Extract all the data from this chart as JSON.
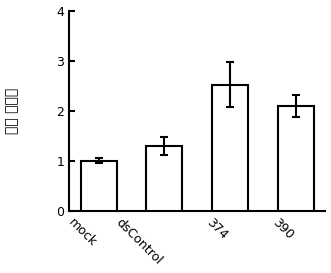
{
  "categories": [
    "mock",
    "dsControl",
    "374",
    "390"
  ],
  "values": [
    1.01,
    1.3,
    2.52,
    2.1
  ],
  "errors": [
    0.05,
    0.18,
    0.45,
    0.22
  ],
  "bar_color": "#ffffff",
  "bar_edgecolor": "#000000",
  "bar_width": 0.55,
  "ylim": [
    0,
    4
  ],
  "yticks": [
    0,
    1,
    2,
    3,
    4
  ],
  "ylabel": "相对 表达量",
  "ylabel_fontsize": 10,
  "tick_fontsize": 9,
  "xtick_rotation": -45,
  "capsize": 3,
  "linewidth": 1.5,
  "background_color": "#ffffff"
}
